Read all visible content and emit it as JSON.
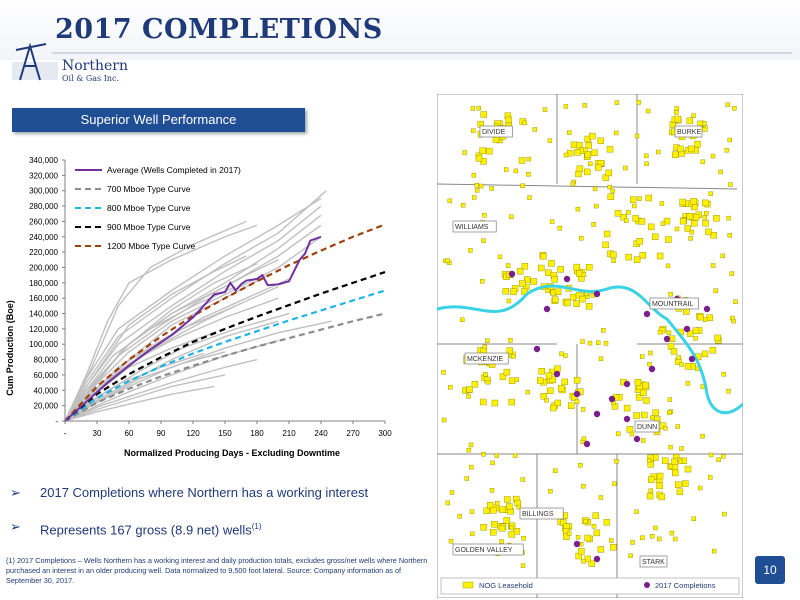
{
  "header": {
    "title": "2017 COMPLETIONS"
  },
  "logo": {
    "line1": "Northern",
    "line2": "Oil & Gas Inc."
  },
  "banner": "Superior Well Performance",
  "chart_data": {
    "type": "line",
    "xlabel": "Normalized Producing Days - Excluding Downtime",
    "ylabel": "Cum Production (Boe)",
    "xlim": [
      0,
      300
    ],
    "ylim": [
      0,
      340000
    ],
    "x_ticks": [
      "-",
      "30",
      "60",
      "90",
      "120",
      "150",
      "180",
      "210",
      "240",
      "270",
      "300"
    ],
    "y_ticks": [
      "-",
      "20,000",
      "40,000",
      "60,000",
      "80,000",
      "100,000",
      "120,000",
      "140,000",
      "160,000",
      "180,000",
      "200,000",
      "220,000",
      "240,000",
      "260,000",
      "280,000",
      "300,000",
      "320,000",
      "340,000"
    ],
    "legend_position": "top-left",
    "series": [
      {
        "name": "Average (Wells Completed in 2017)",
        "color": "#7030a0",
        "style": "solid",
        "x": [
          0,
          20,
          40,
          60,
          80,
          100,
          120,
          130,
          140,
          150,
          155,
          160,
          165,
          170,
          180,
          185,
          190,
          200,
          205,
          210,
          220,
          225,
          230,
          240
        ],
        "y": [
          0,
          25000,
          50000,
          72000,
          93000,
          112000,
          135000,
          150000,
          165000,
          168000,
          180000,
          170000,
          178000,
          183000,
          185000,
          190000,
          177000,
          178000,
          180000,
          182000,
          210000,
          218000,
          235000,
          240000
        ]
      },
      {
        "name": "700 Mboe Type Curve",
        "color": "#8c8c8c",
        "style": "dashed",
        "x": [
          0,
          30,
          60,
          90,
          120,
          150,
          180,
          210,
          240,
          270,
          300
        ],
        "y": [
          0,
          24000,
          42000,
          58000,
          72000,
          85000,
          97000,
          108000,
          119000,
          130000,
          140000
        ]
      },
      {
        "name": "800 Mboe Type Curve",
        "color": "#1fb4e6",
        "style": "dashed",
        "x": [
          0,
          30,
          60,
          90,
          120,
          150,
          180,
          210,
          240,
          270,
          300
        ],
        "y": [
          0,
          30000,
          52000,
          71000,
          88000,
          103000,
          117000,
          131000,
          144000,
          157000,
          170000
        ]
      },
      {
        "name": "900 Mboe Type Curve",
        "color": "#000000",
        "style": "dashed",
        "x": [
          0,
          30,
          60,
          90,
          120,
          150,
          180,
          210,
          240,
          270,
          300
        ],
        "y": [
          0,
          35000,
          61000,
          83000,
          103000,
          120000,
          136000,
          151000,
          166000,
          180000,
          194000
        ]
      },
      {
        "name": "1200 Mboe Type Curve",
        "color": "#a0410d",
        "style": "dashed",
        "x": [
          0,
          30,
          60,
          90,
          120,
          150,
          180,
          210,
          240,
          270,
          300
        ],
        "y": [
          0,
          45000,
          80000,
          110000,
          137000,
          160000,
          182000,
          203000,
          222000,
          240000,
          256000
        ]
      }
    ],
    "individual_wells_color": "#c0c0c0",
    "individual_wells": [
      [
        [
          0,
          0
        ],
        [
          20,
          55000
        ],
        [
          50,
          120000
        ],
        [
          100,
          170000
        ],
        [
          150,
          215000
        ],
        [
          200,
          255000
        ],
        [
          240,
          290000
        ]
      ],
      [
        [
          0,
          0
        ],
        [
          20,
          50000
        ],
        [
          50,
          110000
        ],
        [
          100,
          160000
        ],
        [
          150,
          205000
        ],
        [
          200,
          245000
        ],
        [
          245,
          300000
        ]
      ],
      [
        [
          0,
          0
        ],
        [
          20,
          45000
        ],
        [
          50,
          100000
        ],
        [
          100,
          150000
        ],
        [
          150,
          195000
        ],
        [
          200,
          235000
        ],
        [
          240,
          280000
        ]
      ],
      [
        [
          0,
          0
        ],
        [
          25,
          40000
        ],
        [
          55,
          95000
        ],
        [
          100,
          140000
        ],
        [
          150,
          180000
        ],
        [
          200,
          225000
        ],
        [
          240,
          268000
        ]
      ],
      [
        [
          0,
          0
        ],
        [
          20,
          60000
        ],
        [
          40,
          130000
        ],
        [
          60,
          180000
        ],
        [
          100,
          210000
        ],
        [
          150,
          240000
        ],
        [
          180,
          255000
        ]
      ],
      [
        [
          0,
          0
        ],
        [
          25,
          70000
        ],
        [
          50,
          150000
        ],
        [
          80,
          200000
        ],
        [
          120,
          230000
        ],
        [
          170,
          260000
        ]
      ],
      [
        [
          0,
          0
        ],
        [
          20,
          40000
        ],
        [
          60,
          100000
        ],
        [
          100,
          140000
        ],
        [
          150,
          175000
        ],
        [
          200,
          215000
        ],
        [
          240,
          255000
        ]
      ],
      [
        [
          0,
          0
        ],
        [
          20,
          35000
        ],
        [
          60,
          90000
        ],
        [
          100,
          130000
        ],
        [
          150,
          165000
        ],
        [
          200,
          200000
        ],
        [
          240,
          240000
        ]
      ],
      [
        [
          0,
          0
        ],
        [
          30,
          40000
        ],
        [
          60,
          80000
        ],
        [
          100,
          125000
        ],
        [
          150,
          160000
        ],
        [
          190,
          190000
        ]
      ],
      [
        [
          0,
          0
        ],
        [
          30,
          38000
        ],
        [
          70,
          85000
        ],
        [
          110,
          120000
        ],
        [
          160,
          150000
        ],
        [
          200,
          175000
        ]
      ],
      [
        [
          0,
          0
        ],
        [
          25,
          35000
        ],
        [
          60,
          75000
        ],
        [
          100,
          105000
        ],
        [
          150,
          135000
        ],
        [
          200,
          160000
        ]
      ],
      [
        [
          0,
          0
        ],
        [
          30,
          30000
        ],
        [
          70,
          65000
        ],
        [
          110,
          95000
        ],
        [
          160,
          120000
        ],
        [
          210,
          140000
        ]
      ],
      [
        [
          0,
          0
        ],
        [
          30,
          27000
        ],
        [
          60,
          50000
        ],
        [
          100,
          80000
        ],
        [
          150,
          110000
        ],
        [
          200,
          130000
        ]
      ],
      [
        [
          0,
          0
        ],
        [
          30,
          24000
        ],
        [
          60,
          45000
        ],
        [
          100,
          70000
        ],
        [
          150,
          95000
        ],
        [
          200,
          115000
        ],
        [
          250,
          130000
        ]
      ],
      [
        [
          0,
          0
        ],
        [
          30,
          20000
        ],
        [
          60,
          38000
        ],
        [
          100,
          60000
        ],
        [
          150,
          85000
        ],
        [
          200,
          105000
        ]
      ],
      [
        [
          0,
          0
        ],
        [
          30,
          18000
        ],
        [
          60,
          32000
        ],
        [
          100,
          50000
        ],
        [
          150,
          70000
        ],
        [
          180,
          80000
        ]
      ],
      [
        [
          0,
          0
        ],
        [
          30,
          15000
        ],
        [
          60,
          28000
        ],
        [
          100,
          45000
        ],
        [
          150,
          60000
        ]
      ],
      [
        [
          0,
          0
        ],
        [
          30,
          12000
        ],
        [
          60,
          22000
        ],
        [
          100,
          35000
        ],
        [
          140,
          45000
        ]
      ],
      [
        [
          0,
          0
        ],
        [
          20,
          30000
        ],
        [
          50,
          70000
        ],
        [
          90,
          105000
        ],
        [
          130,
          135000
        ],
        [
          170,
          160000
        ],
        [
          210,
          185000
        ]
      ],
      [
        [
          0,
          0
        ],
        [
          20,
          28000
        ],
        [
          50,
          65000
        ],
        [
          90,
          100000
        ],
        [
          130,
          130000
        ],
        [
          160,
          150000
        ]
      ],
      [
        [
          0,
          0
        ],
        [
          20,
          40000
        ],
        [
          45,
          85000
        ],
        [
          80,
          120000
        ],
        [
          120,
          150000
        ],
        [
          160,
          175000
        ]
      ],
      [
        [
          0,
          0
        ],
        [
          25,
          45000
        ],
        [
          60,
          100000
        ],
        [
          100,
          145000
        ],
        [
          140,
          180000
        ],
        [
          180,
          205000
        ]
      ],
      [
        [
          0,
          0
        ],
        [
          25,
          32000
        ],
        [
          60,
          70000
        ],
        [
          100,
          95000
        ],
        [
          140,
          115000
        ]
      ],
      [
        [
          0,
          0
        ],
        [
          30,
          25000
        ],
        [
          70,
          55000
        ],
        [
          110,
          75000
        ],
        [
          150,
          90000
        ]
      ],
      [
        [
          0,
          0
        ],
        [
          20,
          35000
        ],
        [
          50,
          85000
        ],
        [
          90,
          125000
        ],
        [
          130,
          160000
        ],
        [
          170,
          190000
        ],
        [
          200,
          210000
        ]
      ],
      [
        [
          0,
          0
        ],
        [
          20,
          22000
        ],
        [
          50,
          48000
        ],
        [
          90,
          70000
        ],
        [
          130,
          88000
        ]
      ],
      [
        [
          0,
          0
        ],
        [
          25,
          55000
        ],
        [
          60,
          125000
        ],
        [
          100,
          165000
        ],
        [
          140,
          195000
        ],
        [
          170,
          215000
        ]
      ]
    ]
  },
  "map": {
    "labels": [
      "DIVIDE",
      "BURKE",
      "WILLIAMS",
      "MOUNTRAIL",
      "MCKENZIE",
      "DUNN",
      "BILLINGS",
      "GOLDEN VALLEY",
      "STARK"
    ],
    "legend": {
      "leasehold": "NOG Leasehold",
      "completions": "2017 Completions"
    },
    "leasehold_color": "#fff000",
    "completion_color": "#7a1f8c",
    "river_color": "#39d3e6"
  },
  "bullets": [
    {
      "arrow": "➢",
      "text": "2017 Completions where Northern has a working interest",
      "sup": ""
    },
    {
      "arrow": "➢",
      "text": "Represents 167 gross (8.9 net) wells",
      "sup": "(1)"
    }
  ],
  "footnote": "(1) 2017 Completions – Wells Northern has a working interest and daily production totals, excludes gross/net wells where Northern purchased an interest in an older producing well. Data normalized to 9,500 foot lateral. Source: Company information as of September 30, 2017.",
  "page_number": "10"
}
